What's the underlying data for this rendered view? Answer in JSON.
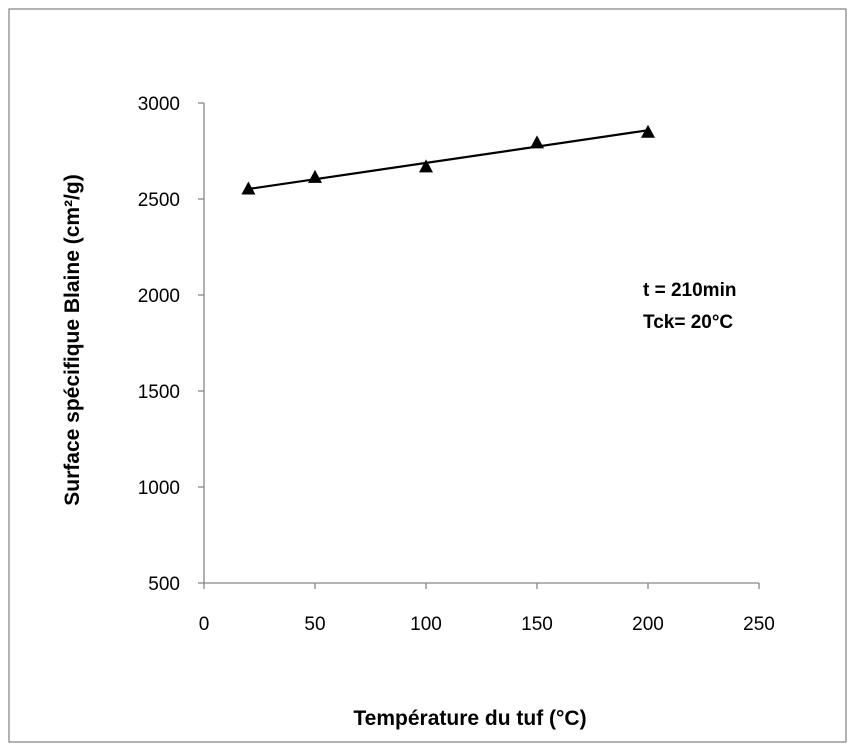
{
  "chart_data": {
    "type": "scatter",
    "title": "",
    "xlabel": "Température du tuf (°C)",
    "ylabel": "Surface spécifique Blaine (cm²/g)",
    "xlim": [
      0,
      250
    ],
    "ylim": [
      500,
      3000
    ],
    "x_ticks": [
      "0",
      "50",
      "100",
      "150",
      "200",
      "250"
    ],
    "y_ticks": [
      "500",
      "1000",
      "1500",
      "2000",
      "2500",
      "3000"
    ],
    "grid": false,
    "marker": "triangle",
    "series": [
      {
        "x": [
          20,
          50,
          100,
          150,
          200
        ],
        "y": [
          2555,
          2615,
          2670,
          2795,
          2850
        ]
      }
    ],
    "trendline": {
      "type": "linear",
      "x": [
        20,
        200
      ],
      "y": [
        2552,
        2858
      ]
    },
    "annotations": [
      "t = 210min",
      "Tck= 20°C"
    ]
  }
}
